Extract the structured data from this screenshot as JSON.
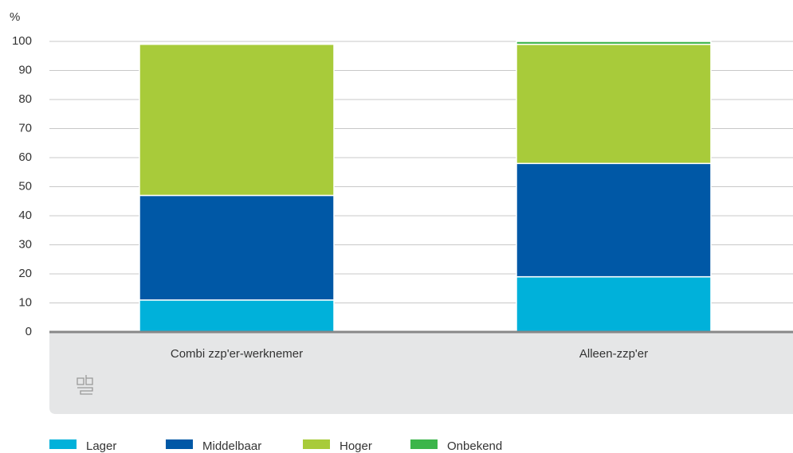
{
  "chart_data": {
    "type": "stacked-bar",
    "ylabel": "%",
    "categories": [
      "Combi zzp'er-werknemer",
      "Alleen-zzp'er"
    ],
    "series": [
      {
        "name": "Lager",
        "color": "#00b1da",
        "values": [
          11,
          19
        ]
      },
      {
        "name": "Middelbaar",
        "color": "#0058a6",
        "values": [
          36,
          39
        ]
      },
      {
        "name": "Hoger",
        "color": "#a8cb3a",
        "values": [
          52,
          41
        ]
      },
      {
        "name": "Onbekend",
        "color": "#3cb54a",
        "values": [
          0,
          1
        ]
      }
    ],
    "ylim": [
      0,
      100
    ],
    "yticks": [
      0,
      10,
      20,
      30,
      40,
      50,
      60,
      70,
      80,
      90,
      100
    ],
    "grid": true,
    "legend": "bottom"
  }
}
